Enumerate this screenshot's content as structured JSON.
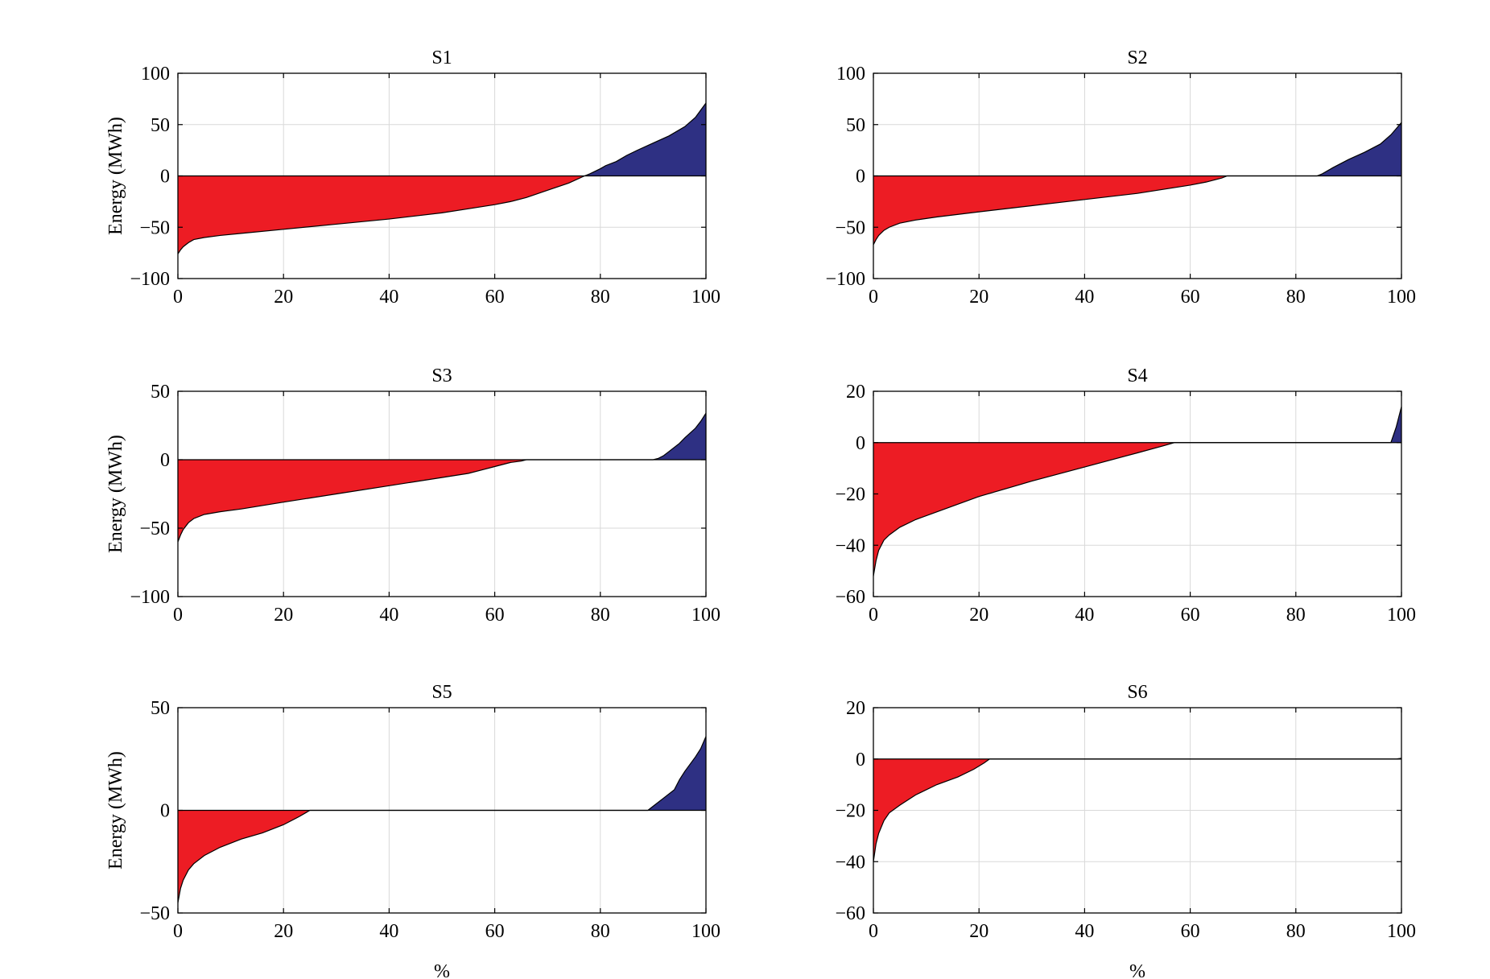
{
  "figure": {
    "colors": {
      "negative_fill": "#ED1C24",
      "positive_fill": "#2E3083",
      "grid": "#d9d9d9",
      "axes": "#000000"
    }
  },
  "chart_data": [
    {
      "type": "area",
      "title": "S1",
      "xlabel": "",
      "ylabel": "Energy (MWh)",
      "xlim": [
        0,
        100
      ],
      "ylim": [
        -100,
        100
      ],
      "xticks": [
        0,
        20,
        40,
        60,
        80,
        100
      ],
      "yticks": [
        -100,
        -50,
        0,
        50,
        100
      ],
      "ytick_labels": [
        "−100",
        "−50",
        "0",
        "50",
        "100"
      ],
      "grid": true,
      "x": [
        0,
        0.5,
        1,
        2,
        3,
        5,
        8,
        12,
        20,
        30,
        40,
        50,
        55,
        60,
        63,
        66,
        70,
        74,
        77,
        78,
        80,
        81,
        83,
        85,
        87,
        90,
        93,
        96,
        98,
        99,
        100
      ],
      "y": [
        -76,
        -72,
        -69,
        -65,
        -62,
        -60,
        -58,
        -56,
        -52,
        -47,
        -42,
        -36,
        -32,
        -28,
        -25,
        -21,
        -14,
        -7,
        0,
        2,
        7,
        10,
        14,
        20,
        25,
        32,
        39,
        48,
        57,
        64,
        71
      ]
    },
    {
      "type": "area",
      "title": "S2",
      "xlabel": "",
      "ylabel": "",
      "xlim": [
        0,
        100
      ],
      "ylim": [
        -100,
        100
      ],
      "xticks": [
        0,
        20,
        40,
        60,
        80,
        100
      ],
      "yticks": [
        -100,
        -50,
        0,
        50,
        100
      ],
      "ytick_labels": [
        "−100",
        "−50",
        "0",
        "50",
        "100"
      ],
      "grid": true,
      "x": [
        0,
        0.5,
        1,
        2,
        3,
        5,
        8,
        12,
        20,
        30,
        40,
        50,
        55,
        60,
        63,
        66,
        67,
        70,
        75,
        80,
        84,
        85,
        87,
        90,
        93,
        96,
        98,
        99,
        100
      ],
      "y": [
        -67,
        -62,
        -58,
        -53,
        -50,
        -46,
        -43,
        -40,
        -35,
        -29,
        -23,
        -17,
        -13,
        -9,
        -6,
        -2,
        0,
        0,
        0,
        0,
        0,
        2,
        8,
        16,
        23,
        31,
        40,
        46,
        52
      ]
    },
    {
      "type": "area",
      "title": "S3",
      "xlabel": "",
      "ylabel": "Energy (MWh)",
      "xlim": [
        0,
        100
      ],
      "ylim": [
        -100,
        50
      ],
      "xticks": [
        0,
        20,
        40,
        60,
        80,
        100
      ],
      "yticks": [
        -100,
        -50,
        0,
        50
      ],
      "ytick_labels": [
        "−100",
        "−50",
        "0",
        "50"
      ],
      "grid": true,
      "x": [
        0,
        0.5,
        1,
        2,
        3,
        5,
        8,
        12,
        20,
        30,
        40,
        50,
        55,
        58,
        60,
        63,
        65,
        66,
        70,
        80,
        90,
        91,
        92,
        93,
        95,
        96,
        98,
        99,
        100
      ],
      "y": [
        -60,
        -55,
        -51,
        -46,
        -43,
        -40,
        -38,
        -36,
        -31,
        -25,
        -19,
        -13,
        -10,
        -7,
        -5,
        -2,
        -1,
        0,
        0,
        0,
        0,
        1,
        3,
        6,
        12,
        16,
        23,
        28,
        34
      ]
    },
    {
      "type": "area",
      "title": "S4",
      "xlabel": "",
      "ylabel": "",
      "xlim": [
        0,
        100
      ],
      "ylim": [
        -60,
        20
      ],
      "xticks": [
        0,
        20,
        40,
        60,
        80,
        100
      ],
      "yticks": [
        -60,
        -40,
        -20,
        0,
        20
      ],
      "ytick_labels": [
        "−60",
        "−40",
        "−20",
        "0",
        "20"
      ],
      "grid": true,
      "x": [
        0,
        0.5,
        1,
        2,
        3,
        5,
        8,
        12,
        20,
        30,
        40,
        50,
        55,
        57,
        60,
        70,
        80,
        90,
        97,
        98,
        99,
        100
      ],
      "y": [
        -52,
        -46,
        -42,
        -38,
        -36,
        -33,
        -30,
        -27,
        -21,
        -15,
        -9.5,
        -4,
        -1.2,
        0,
        0,
        0,
        0,
        0,
        0,
        0,
        6,
        14
      ]
    },
    {
      "type": "area",
      "title": "S5",
      "xlabel": "%",
      "ylabel": "Energy (MWh)",
      "xlim": [
        0,
        100
      ],
      "ylim": [
        -50,
        50
      ],
      "xticks": [
        0,
        20,
        40,
        60,
        80,
        100
      ],
      "yticks": [
        -50,
        0,
        50
      ],
      "ytick_labels": [
        "−50",
        "0",
        "50"
      ],
      "grid": true,
      "x": [
        0,
        0.5,
        1,
        2,
        3,
        5,
        8,
        12,
        16,
        20,
        23,
        25,
        30,
        40,
        50,
        60,
        70,
        80,
        89,
        90,
        92,
        94,
        95,
        96,
        98,
        99,
        100
      ],
      "y": [
        -45,
        -38,
        -34,
        -29,
        -26,
        -22,
        -18,
        -14,
        -11,
        -7,
        -3,
        0,
        0,
        0,
        0,
        0,
        0,
        0,
        0,
        2,
        6,
        10,
        15,
        19,
        26,
        30,
        36
      ]
    },
    {
      "type": "area",
      "title": "S6",
      "xlabel": "%",
      "ylabel": "",
      "xlim": [
        0,
        100
      ],
      "ylim": [
        -60,
        20
      ],
      "xticks": [
        0,
        20,
        40,
        60,
        80,
        100
      ],
      "yticks": [
        -60,
        -40,
        -20,
        0,
        20
      ],
      "ytick_labels": [
        "−60",
        "−40",
        "−20",
        "0",
        "20"
      ],
      "grid": true,
      "x": [
        0,
        0.5,
        1,
        2,
        3,
        5,
        8,
        12,
        16,
        19,
        21,
        22,
        25,
        40,
        60,
        80,
        99,
        100
      ],
      "y": [
        -40,
        -33,
        -29,
        -24,
        -21,
        -18,
        -14,
        -10,
        -7,
        -4,
        -1.5,
        0,
        0,
        0,
        0,
        0,
        0,
        0.3
      ]
    }
  ]
}
